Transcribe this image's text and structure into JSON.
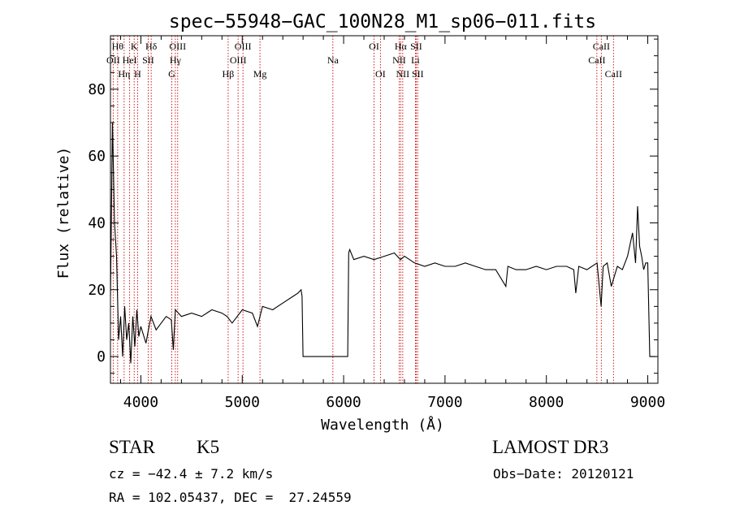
{
  "chart_data": {
    "type": "line",
    "title": "spec−55948−GAC_100N28_M1_sp06−011.fits",
    "xlabel": "Wavelength (Å)",
    "ylabel": "Flux (relative)",
    "xlim": [
      3700,
      9100
    ],
    "ylim": [
      -8,
      96
    ],
    "x_ticks": [
      4000,
      5000,
      6000,
      7000,
      8000,
      9000
    ],
    "x_tick_labels": [
      "4000",
      "5000",
      "6000",
      "7000",
      "8000",
      "9000"
    ],
    "y_ticks": [
      0,
      20,
      40,
      60,
      80
    ],
    "y_tick_labels": [
      "0",
      "20",
      "40",
      "60",
      "80"
    ],
    "series": [
      {
        "name": "flux",
        "x": [
          3700,
          3720,
          3740,
          3760,
          3780,
          3800,
          3820,
          3840,
          3860,
          3880,
          3900,
          3920,
          3940,
          3960,
          3980,
          4000,
          4050,
          4100,
          4150,
          4200,
          4250,
          4300,
          4320,
          4340,
          4400,
          4500,
          4600,
          4700,
          4800,
          4850,
          4900,
          5000,
          5100,
          5150,
          5200,
          5300,
          5400,
          5500,
          5550,
          5580,
          5590,
          5600,
          5700,
          5800,
          5900,
          6000,
          6040,
          6050,
          6060,
          6100,
          6200,
          6300,
          6400,
          6500,
          6560,
          6600,
          6700,
          6800,
          6900,
          7000,
          7100,
          7200,
          7300,
          7400,
          7500,
          7600,
          7620,
          7700,
          7800,
          7900,
          8000,
          8100,
          8200,
          8270,
          8290,
          8320,
          8400,
          8500,
          8540,
          8560,
          8600,
          8640,
          8700,
          8750,
          8800,
          8850,
          8880,
          8900,
          8920,
          8940,
          8960,
          8980,
          9000,
          9020,
          9040,
          9060,
          9080
        ],
        "y": [
          18,
          70,
          40,
          30,
          5,
          12,
          0,
          15,
          5,
          10,
          -2,
          12,
          3,
          14,
          6,
          9,
          4,
          12,
          8,
          10,
          12,
          11,
          2,
          14,
          12,
          13,
          12,
          14,
          13,
          12,
          10,
          14,
          13,
          9,
          15,
          14,
          16,
          18,
          19,
          20,
          18,
          0,
          0,
          0,
          0,
          0,
          0,
          31,
          32,
          29,
          30,
          29,
          30,
          31,
          29,
          30,
          28,
          27,
          28,
          27,
          27,
          28,
          27,
          26,
          26,
          21,
          27,
          26,
          26,
          27,
          26,
          27,
          27,
          26,
          19,
          27,
          26,
          28,
          15,
          27,
          28,
          21,
          27,
          26,
          30,
          37,
          28,
          45,
          33,
          30,
          26,
          28,
          28,
          0,
          0,
          0,
          0
        ]
      }
    ],
    "lines": [
      {
        "label": "OII",
        "wavelength": 3727,
        "row": 2
      },
      {
        "label": "Hθ",
        "wavelength": 3771,
        "row": 1
      },
      {
        "label": "Hη",
        "wavelength": 3835,
        "row": 3
      },
      {
        "label": "HeI",
        "wavelength": 3889,
        "row": 2
      },
      {
        "label": "K",
        "wavelength": 3934,
        "row": 1
      },
      {
        "label": "H",
        "wavelength": 3968,
        "row": 3
      },
      {
        "label": "SII",
        "wavelength": 4072,
        "row": 2
      },
      {
        "label": "Hδ",
        "wavelength": 4102,
        "row": 1
      },
      {
        "label": "G",
        "wavelength": 4305,
        "row": 3
      },
      {
        "label": "Hγ",
        "wavelength": 4340,
        "row": 2
      },
      {
        "label": "OIII",
        "wavelength": 4363,
        "row": 1
      },
      {
        "label": "Hβ",
        "wavelength": 4861,
        "row": 3
      },
      {
        "label": "OIII",
        "wavelength": 4959,
        "row": 2
      },
      {
        "label": "OIII",
        "wavelength": 5007,
        "row": 1
      },
      {
        "label": "Mg",
        "wavelength": 5175,
        "row": 3
      },
      {
        "label": "Na",
        "wavelength": 5894,
        "row": 2
      },
      {
        "label": "OI",
        "wavelength": 6300,
        "row": 1
      },
      {
        "label": "OI",
        "wavelength": 6363,
        "row": 3
      },
      {
        "label": "NII",
        "wavelength": 6548,
        "row": 2
      },
      {
        "label": "Hα",
        "wavelength": 6563,
        "row": 1
      },
      {
        "label": "NII",
        "wavelength": 6583,
        "row": 3
      },
      {
        "label": "Li",
        "wavelength": 6708,
        "row": 2
      },
      {
        "label": "SII",
        "wavelength": 6716,
        "row": 1
      },
      {
        "label": "SII",
        "wavelength": 6731,
        "row": 3
      },
      {
        "label": "CaII",
        "wavelength": 8498,
        "row": 2
      },
      {
        "label": "CaII",
        "wavelength": 8542,
        "row": 1
      },
      {
        "label": "CaII",
        "wavelength": 8662,
        "row": 3
      }
    ],
    "line_color": "#cc0000",
    "grid": false
  },
  "info": {
    "object_type": "STAR",
    "subclass": "K5",
    "survey": "LAMOST DR3",
    "redshift": "cz = −42.4 ± 7.2 km/s",
    "obs_date": "Obs−Date: 20120121",
    "coords": "RA = 102.05437, DEC =  27.24559"
  }
}
